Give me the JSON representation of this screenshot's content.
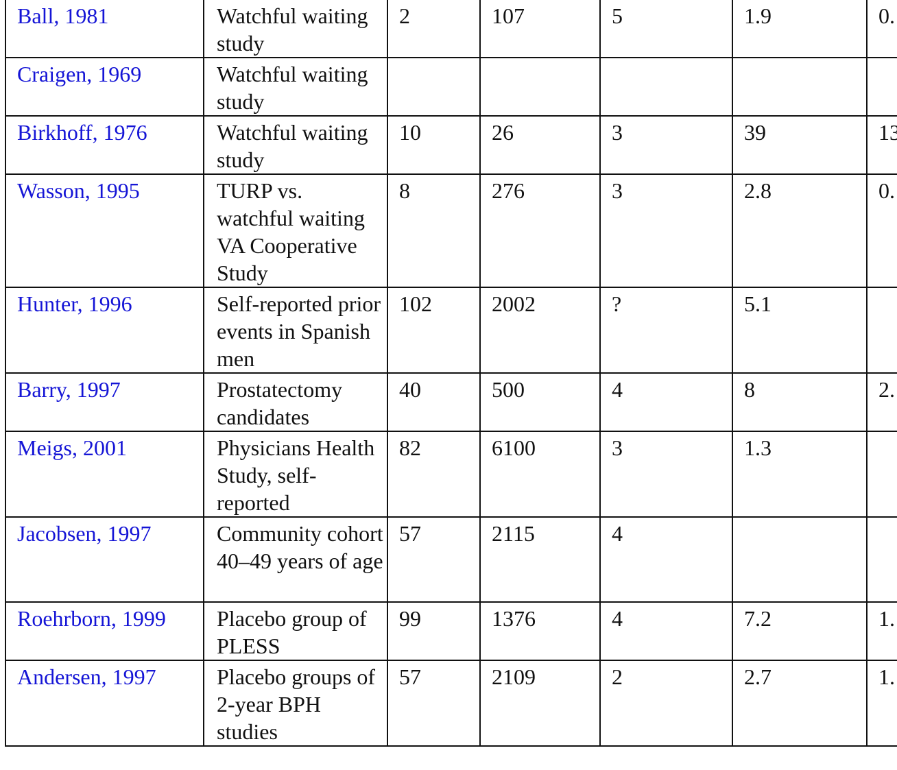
{
  "rows": [
    {
      "reference": "Ball, 1981",
      "description": "Watchful waiting study",
      "events": "2",
      "total": "107",
      "years": "5",
      "rate": "1.9",
      "last": "0."
    },
    {
      "reference": "Craigen, 1969",
      "description": "Watchful waiting study",
      "events": "",
      "total": "",
      "years": "",
      "rate": "",
      "last": ""
    },
    {
      "reference": "Birkhoff, 1976",
      "description": "Watchful waiting study",
      "events": "10",
      "total": "26",
      "years": "3",
      "rate": "39",
      "last": "13"
    },
    {
      "reference": "Wasson, 1995",
      "description": "TURP vs. watchful waiting VA Cooperative Study",
      "events": "8",
      "total": "276",
      "years": "3",
      "rate": "2.8",
      "last": "0."
    },
    {
      "reference": "Hunter, 1996",
      "description": "Self-reported prior events in Spanish men",
      "events": "102",
      "total": "2002",
      "years": "?",
      "rate": "5.1",
      "last": ""
    },
    {
      "reference": "Barry, 1997",
      "description": "Prostatectomy candidates",
      "events": "40",
      "total": "500",
      "years": "4",
      "rate": "8",
      "last": "2."
    },
    {
      "reference": "Meigs, 2001",
      "description": "Physicians Health Study, self-reported",
      "events": "82",
      "total": "6100",
      "years": "3",
      "rate": "1.3",
      "last": ""
    },
    {
      "reference": "Jacobsen, 1997",
      "description": "Community cohort 40–49 years of age",
      "events": "57",
      "total": "2115",
      "years": "4",
      "rate": "",
      "last": ""
    },
    {
      "reference": "Roehrborn, 1999",
      "description": "Placebo group of PLESS",
      "events": "99",
      "total": "1376",
      "years": "4",
      "rate": "7.2",
      "last": "1."
    },
    {
      "reference": "Andersen, 1997",
      "description": "Placebo groups of 2-year BPH studies",
      "events": "57",
      "total": "2109",
      "years": "2",
      "rate": "2.7",
      "last": "1."
    }
  ],
  "colors": {
    "link": "#1515d6",
    "text": "#111111",
    "border": "#111111"
  }
}
